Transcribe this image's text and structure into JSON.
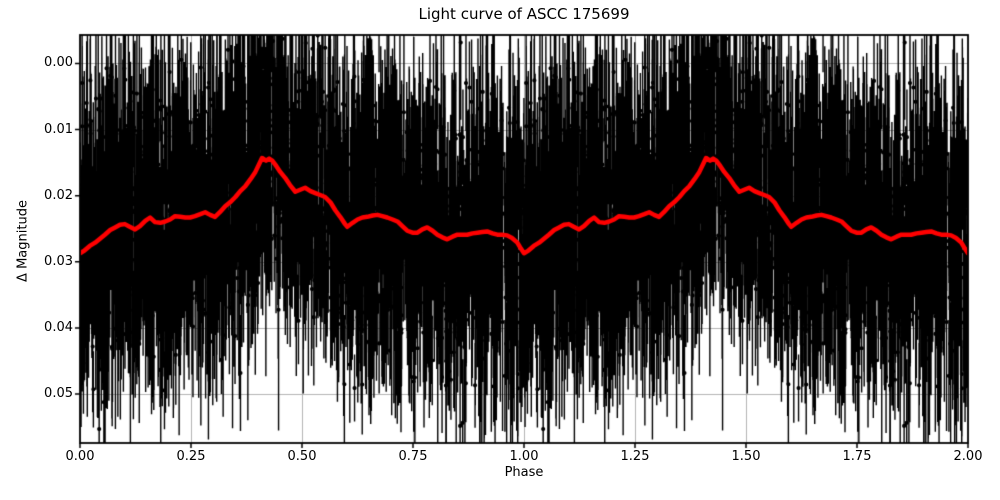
{
  "figure": {
    "title": "Light curve of ASCC 175699",
    "xlabel": "Phase",
    "ylabel": "Δ Magnitude"
  },
  "chart_data": {
    "type": "scatter",
    "title": "Light curve of ASCC 175699",
    "xlabel": "Phase",
    "ylabel": "Δ Magnitude",
    "xlim": [
      0.0,
      2.0
    ],
    "ylim": [
      -0.0043,
      0.0574
    ],
    "y_axis_inverted": true,
    "grid": true,
    "legend": false,
    "x_ticks": [
      0.0,
      0.25,
      0.5,
      0.75,
      1.0,
      1.25,
      1.5,
      1.75,
      2.0
    ],
    "x_tick_labels": [
      "0.00",
      "0.25",
      "0.50",
      "0.75",
      "1.00",
      "1.25",
      "1.50",
      "1.75",
      "2.00"
    ],
    "y_ticks": [
      0.0,
      0.01,
      0.02,
      0.03,
      0.04,
      0.05
    ],
    "y_tick_labels": [
      "0.00",
      "0.01",
      "0.02",
      "0.03",
      "0.04",
      "0.05"
    ],
    "colors": {
      "curve": "#ff0000",
      "points": "#000000",
      "grid": "#b4b4b4",
      "spine": "#000000",
      "background": "#ffffff"
    },
    "series": [
      {
        "name": "phase-folded photometric measurements with error bars",
        "type": "errorbar-scatter",
        "color": "#000000",
        "repeat_cycles": 2,
        "generated": {
          "note": "dense noisy point cloud; statistics estimated from pixels",
          "count_per_cycle": 2500,
          "mag_noise_sigma": 0.0095,
          "errorbar_halflength_base": 0.005,
          "errorbar_halflength_spread": 0.0065,
          "errorbar_halflength_max": 0.021,
          "seed": 1337
        }
      },
      {
        "name": "running-average folded light curve",
        "type": "line",
        "color": "#ff0000",
        "repeat_cycles": 2,
        "points": [
          [
            0.0,
            0.0287
          ],
          [
            0.01,
            0.0283
          ],
          [
            0.022,
            0.0276
          ],
          [
            0.034,
            0.0271
          ],
          [
            0.045,
            0.0265
          ],
          [
            0.056,
            0.0259
          ],
          [
            0.068,
            0.0252
          ],
          [
            0.079,
            0.0248
          ],
          [
            0.09,
            0.0244
          ],
          [
            0.101,
            0.0243
          ],
          [
            0.112,
            0.0247
          ],
          [
            0.124,
            0.0251
          ],
          [
            0.135,
            0.0246
          ],
          [
            0.147,
            0.0238
          ],
          [
            0.158,
            0.0233
          ],
          [
            0.169,
            0.024
          ],
          [
            0.181,
            0.0241
          ],
          [
            0.192,
            0.0239
          ],
          [
            0.203,
            0.0236
          ],
          [
            0.214,
            0.0231
          ],
          [
            0.226,
            0.0232
          ],
          [
            0.237,
            0.0233
          ],
          [
            0.248,
            0.0233
          ],
          [
            0.259,
            0.0231
          ],
          [
            0.271,
            0.0228
          ],
          [
            0.282,
            0.0225
          ],
          [
            0.293,
            0.0229
          ],
          [
            0.304,
            0.0232
          ],
          [
            0.315,
            0.0225
          ],
          [
            0.327,
            0.0216
          ],
          [
            0.338,
            0.021
          ],
          [
            0.35,
            0.0202
          ],
          [
            0.361,
            0.0193
          ],
          [
            0.372,
            0.0186
          ],
          [
            0.384,
            0.0175
          ],
          [
            0.395,
            0.0164
          ],
          [
            0.403,
            0.0153
          ],
          [
            0.41,
            0.0143
          ],
          [
            0.419,
            0.0147
          ],
          [
            0.426,
            0.0144
          ],
          [
            0.433,
            0.0147
          ],
          [
            0.442,
            0.0155
          ],
          [
            0.451,
            0.0164
          ],
          [
            0.462,
            0.0173
          ],
          [
            0.473,
            0.0184
          ],
          [
            0.485,
            0.0194
          ],
          [
            0.496,
            0.0191
          ],
          [
            0.507,
            0.0188
          ],
          [
            0.519,
            0.0193
          ],
          [
            0.53,
            0.0196
          ],
          [
            0.541,
            0.0199
          ],
          [
            0.552,
            0.0202
          ],
          [
            0.564,
            0.021
          ],
          [
            0.575,
            0.0222
          ],
          [
            0.586,
            0.0232
          ],
          [
            0.597,
            0.0243
          ],
          [
            0.602,
            0.0247
          ],
          [
            0.614,
            0.0241
          ],
          [
            0.625,
            0.0236
          ],
          [
            0.636,
            0.0233
          ],
          [
            0.647,
            0.0232
          ],
          [
            0.659,
            0.023
          ],
          [
            0.67,
            0.0229
          ],
          [
            0.681,
            0.0231
          ],
          [
            0.692,
            0.0233
          ],
          [
            0.704,
            0.0236
          ],
          [
            0.715,
            0.0239
          ],
          [
            0.726,
            0.0246
          ],
          [
            0.737,
            0.0253
          ],
          [
            0.749,
            0.0256
          ],
          [
            0.76,
            0.0256
          ],
          [
            0.771,
            0.0251
          ],
          [
            0.782,
            0.0248
          ],
          [
            0.794,
            0.0253
          ],
          [
            0.805,
            0.0259
          ],
          [
            0.816,
            0.0263
          ],
          [
            0.827,
            0.0266
          ],
          [
            0.839,
            0.0262
          ],
          [
            0.85,
            0.0259
          ],
          [
            0.861,
            0.0259
          ],
          [
            0.872,
            0.0259
          ],
          [
            0.884,
            0.0257
          ],
          [
            0.895,
            0.0256
          ],
          [
            0.906,
            0.0255
          ],
          [
            0.917,
            0.0254
          ],
          [
            0.929,
            0.0257
          ],
          [
            0.94,
            0.0259
          ],
          [
            0.951,
            0.0259
          ],
          [
            0.962,
            0.026
          ],
          [
            0.973,
            0.0264
          ],
          [
            0.985,
            0.0271
          ],
          [
            0.993,
            0.028
          ],
          [
            1.0,
            0.0287
          ]
        ]
      }
    ]
  }
}
